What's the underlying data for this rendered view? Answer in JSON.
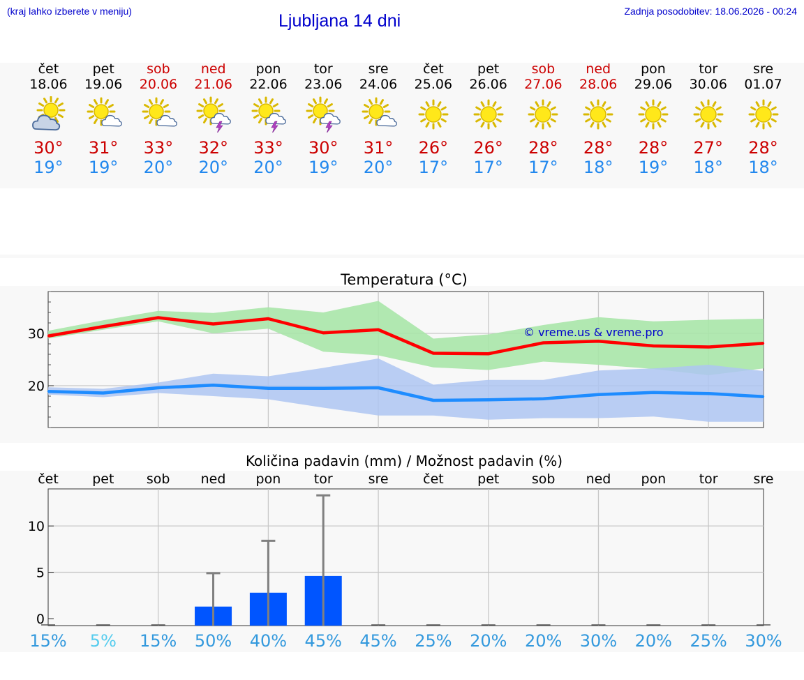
{
  "header": {
    "hint": "(kraj lahko izberete v meniju)",
    "title": "Ljubljana 14 dni",
    "updated": "Zadnja posodobitev: 18.06.2026 - 00:24"
  },
  "days": [
    {
      "name": "čet",
      "date": "18.06",
      "weekend": false,
      "icon": "sun-cloud-icon",
      "tmax": "30°",
      "tmin": "19°"
    },
    {
      "name": "pet",
      "date": "19.06",
      "weekend": false,
      "icon": "sun-small-cloud-icon",
      "tmax": "31°",
      "tmin": "19°"
    },
    {
      "name": "sob",
      "date": "20.06",
      "weekend": true,
      "icon": "sun-small-cloud-icon",
      "tmax": "33°",
      "tmin": "20°"
    },
    {
      "name": "ned",
      "date": "21.06",
      "weekend": true,
      "icon": "sun-thunder-icon",
      "tmax": "32°",
      "tmin": "20°"
    },
    {
      "name": "pon",
      "date": "22.06",
      "weekend": false,
      "icon": "sun-thunder-icon",
      "tmax": "33°",
      "tmin": "20°"
    },
    {
      "name": "tor",
      "date": "23.06",
      "weekend": false,
      "icon": "sun-thunder-icon",
      "tmax": "30°",
      "tmin": "19°"
    },
    {
      "name": "sre",
      "date": "24.06",
      "weekend": false,
      "icon": "sun-small-cloud-icon",
      "tmax": "31°",
      "tmin": "20°"
    },
    {
      "name": "čet",
      "date": "25.06",
      "weekend": false,
      "icon": "sun-icon",
      "tmax": "26°",
      "tmin": "17°"
    },
    {
      "name": "pet",
      "date": "26.06",
      "weekend": false,
      "icon": "sun-icon",
      "tmax": "26°",
      "tmin": "17°"
    },
    {
      "name": "sob",
      "date": "27.06",
      "weekend": true,
      "icon": "sun-icon",
      "tmax": "28°",
      "tmin": "17°"
    },
    {
      "name": "ned",
      "date": "28.06",
      "weekend": true,
      "icon": "sun-icon",
      "tmax": "28°",
      "tmin": "18°"
    },
    {
      "name": "pon",
      "date": "29.06",
      "weekend": false,
      "icon": "sun-icon",
      "tmax": "28°",
      "tmin": "19°"
    },
    {
      "name": "tor",
      "date": "30.06",
      "weekend": false,
      "icon": "sun-icon",
      "tmax": "27°",
      "tmin": "18°"
    },
    {
      "name": "sre",
      "date": "01.07",
      "weekend": false,
      "icon": "sun-icon",
      "tmax": "28°",
      "tmin": "18°"
    }
  ],
  "colors": {
    "max_line": "#ff0000",
    "max_band": "#a8e6a8",
    "min_line": "#1e8cff",
    "min_band": "#aec6f2",
    "bar": "#0055ff",
    "error": "#808080",
    "weekend": "#cc0000",
    "max_text": "#cc0000",
    "min_text": "#2288ee",
    "header_text": "#0000cc"
  },
  "chart_data": [
    {
      "type": "line",
      "title": "Temperatura (°C)",
      "watermark": "© vreme.us & vreme.pro",
      "x": [
        "18.06",
        "19.06",
        "20.06",
        "21.06",
        "22.06",
        "23.06",
        "24.06",
        "25.06",
        "26.06",
        "27.06",
        "28.06",
        "29.06",
        "30.06",
        "01.07"
      ],
      "ylim": [
        12,
        38
      ],
      "yticks": [
        20,
        30
      ],
      "grid": true,
      "series": [
        {
          "values": [
            29.5,
            31.3,
            33.0,
            31.8,
            32.8,
            30.1,
            30.7,
            26.2,
            26.1,
            28.2,
            28.5,
            27.6,
            27.4,
            28.1
          ],
          "band_high": [
            30.5,
            32.5,
            34.3,
            33.9,
            35.0,
            34.0,
            36.2,
            29.0,
            29.8,
            31.6,
            33.1,
            32.3,
            32.6,
            32.8
          ],
          "band_low": [
            29.0,
            30.7,
            32.3,
            30.0,
            30.9,
            26.5,
            25.8,
            23.5,
            23.0,
            24.6,
            24.0,
            23.2,
            22.0,
            23.3
          ]
        },
        {
          "values": [
            18.9,
            18.6,
            19.6,
            20.1,
            19.5,
            19.5,
            19.6,
            17.2,
            17.3,
            17.5,
            18.3,
            18.7,
            18.5,
            17.9
          ],
          "band_high": [
            19.7,
            19.4,
            20.6,
            22.3,
            21.8,
            23.4,
            25.2,
            20.2,
            21.1,
            21.1,
            22.9,
            23.3,
            24.0,
            22.8
          ],
          "band_low": [
            18.3,
            17.8,
            18.6,
            18.0,
            17.4,
            15.8,
            14.3,
            14.3,
            13.5,
            13.8,
            13.8,
            14.1,
            13.1,
            13.1
          ]
        }
      ]
    },
    {
      "type": "bar",
      "title": "Količina padavin (mm) / Možnost padavin (%)",
      "categories": [
        "čet",
        "pet",
        "sob",
        "ned",
        "pon",
        "tor",
        "sre",
        "čet",
        "pet",
        "sob",
        "ned",
        "pon",
        "tor",
        "sre"
      ],
      "values": [
        0,
        0,
        0,
        1.3,
        2.8,
        4.6,
        0,
        0,
        0,
        0,
        0,
        0,
        0,
        0
      ],
      "error_high": [
        0,
        0,
        0,
        4.9,
        8.4,
        13.3,
        0,
        0,
        0,
        0,
        0,
        0,
        0,
        0
      ],
      "probability": [
        "15%",
        "5%",
        "15%",
        "50%",
        "40%",
        "45%",
        "45%",
        "25%",
        "20%",
        "20%",
        "30%",
        "20%",
        "25%",
        "30%"
      ],
      "probability_colors": [
        "#3399dd",
        "#55ccee",
        "#3399dd",
        "#3399dd",
        "#3399dd",
        "#3399dd",
        "#3399dd",
        "#3399dd",
        "#3399dd",
        "#3399dd",
        "#3399dd",
        "#3399dd",
        "#3399dd",
        "#3399dd"
      ],
      "ylim": [
        0,
        14
      ],
      "yticks": [
        0,
        5,
        10
      ],
      "grid": true
    }
  ]
}
